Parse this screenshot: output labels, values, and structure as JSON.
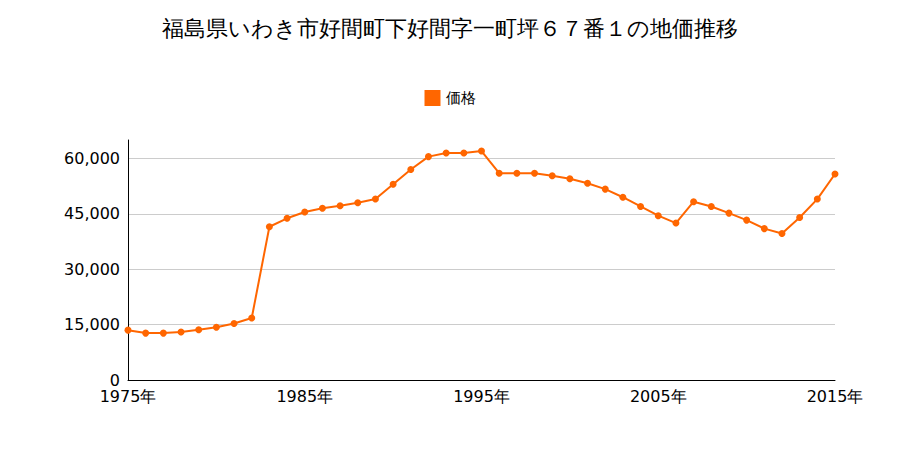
{
  "chart_data": {
    "type": "line",
    "title": "福島県いわき市好間町下好間字一町坪６７番１の地価推移",
    "categories": [
      "1975年",
      null,
      null,
      null,
      null,
      null,
      null,
      null,
      null,
      null,
      "1985年",
      null,
      null,
      null,
      null,
      null,
      null,
      null,
      null,
      null,
      "1995年",
      null,
      null,
      null,
      null,
      null,
      null,
      null,
      null,
      null,
      "2005年",
      null,
      null,
      null,
      null,
      null,
      null,
      null,
      null,
      null,
      "2015年"
    ],
    "series": [
      {
        "name": "価格",
        "color": "#ff6600",
        "marker": "circle",
        "values": [
          13500,
          12700,
          12700,
          13000,
          13600,
          14300,
          15300,
          16800,
          41500,
          43800,
          45500,
          46500,
          47200,
          48000,
          49000,
          53000,
          57000,
          60500,
          61500,
          61500,
          62000,
          56000,
          56000,
          56000,
          55300,
          54500,
          53300,
          51700,
          49500,
          47000,
          44500,
          42500,
          48300,
          47000,
          45200,
          43300,
          41000,
          39700,
          44000,
          49000,
          55800
        ]
      }
    ],
    "ylim": [
      0,
      65000
    ],
    "yticks": [
      0,
      {
        "value": 15000,
        "label": "15,000"
      },
      {
        "value": 30000,
        "label": "30,000"
      },
      {
        "value": 45000,
        "label": "45,000"
      },
      {
        "value": 60000,
        "label": "60,000"
      }
    ],
    "grid": true,
    "legend": "top"
  }
}
